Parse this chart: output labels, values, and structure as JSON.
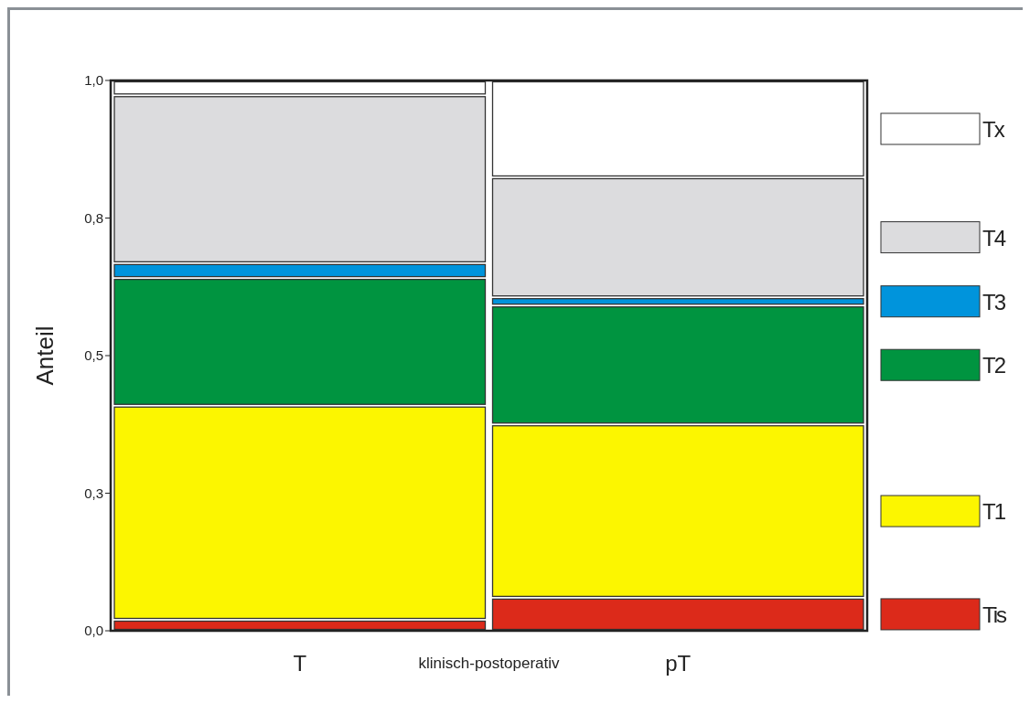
{
  "chart_data": {
    "type": "bar",
    "stacked": true,
    "xlabel": "klinisch-postoperativ",
    "ylabel": "Anteil",
    "categories": [
      "T",
      "pT"
    ],
    "series": [
      {
        "name": "Tis",
        "color": "#dc2a1a",
        "values": [
          0.02,
          0.06
        ]
      },
      {
        "name": "T1",
        "color": "#fcf600",
        "values": [
          0.389,
          0.315
        ]
      },
      {
        "name": "T2",
        "color": "#009440",
        "values": [
          0.232,
          0.216
        ]
      },
      {
        "name": "T3",
        "color": "#0094dc",
        "values": [
          0.027,
          0.015
        ]
      },
      {
        "name": "T4",
        "color": "#dcdcde",
        "values": [
          0.305,
          0.218
        ]
      },
      {
        "name": "Tx",
        "color": "#ffffff",
        "values": [
          0.027,
          0.176
        ]
      }
    ],
    "ylim": [
      0,
      1
    ],
    "yticks": [
      {
        "value": 0,
        "label": "0,0"
      },
      {
        "value": 0.25,
        "label": "0,3"
      },
      {
        "value": 0.5,
        "label": "0,5"
      },
      {
        "value": 0.75,
        "label": "0,8"
      },
      {
        "value": 1,
        "label": "1,0"
      }
    ],
    "grid": false,
    "legend": "right"
  }
}
